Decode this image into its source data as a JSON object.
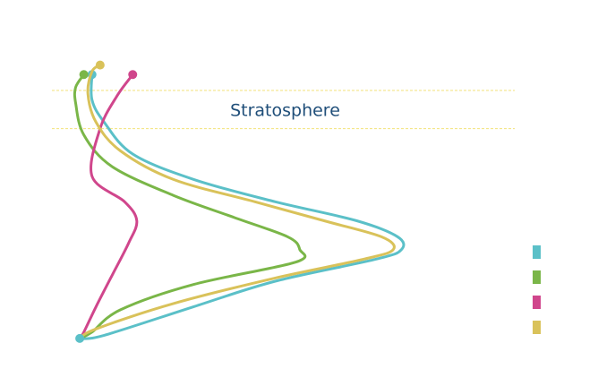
{
  "chart_data": {
    "type": "line",
    "title": "",
    "xlabel": "",
    "ylabel": "",
    "grid": false,
    "legend": "right",
    "xlim": [
      0,
      100
    ],
    "ylim": [
      0,
      100
    ],
    "band": {
      "label": "Stratosphere",
      "y_range": [
        68,
        80
      ],
      "line_color": "#f3e27a",
      "label_color": "#1f4e79"
    },
    "series": [
      {
        "color": "#5bc0c8",
        "points": [
          [
            2,
            2
          ],
          [
            8,
            3
          ],
          [
            30,
            12
          ],
          [
            50,
            20
          ],
          [
            75,
            27
          ],
          [
            81,
            30
          ],
          [
            80,
            34
          ],
          [
            70,
            39
          ],
          [
            50,
            45
          ],
          [
            30,
            52
          ],
          [
            15,
            60
          ],
          [
            8,
            70
          ],
          [
            5,
            77
          ],
          [
            5,
            85
          ]
        ]
      },
      {
        "color": "#7ab648",
        "points": [
          [
            2,
            2
          ],
          [
            5,
            4
          ],
          [
            12,
            11
          ],
          [
            30,
            19
          ],
          [
            55,
            26
          ],
          [
            56,
            30
          ],
          [
            53,
            34
          ],
          [
            40,
            40
          ],
          [
            25,
            47
          ],
          [
            10,
            56
          ],
          [
            3,
            66
          ],
          [
            1,
            76
          ],
          [
            1,
            81
          ],
          [
            3,
            85
          ]
        ]
      },
      {
        "color": "#d0468c",
        "points": [
          [
            2,
            2
          ],
          [
            3,
            4
          ],
          [
            6,
            12
          ],
          [
            10,
            22
          ],
          [
            14,
            32
          ],
          [
            16,
            39
          ],
          [
            13,
            45
          ],
          [
            5,
            53
          ],
          [
            7,
            68
          ],
          [
            11,
            78
          ],
          [
            15,
            85
          ]
        ]
      },
      {
        "color": "#d9c25a",
        "points": [
          [
            2,
            2
          ],
          [
            6,
            5
          ],
          [
            25,
            13
          ],
          [
            50,
            21
          ],
          [
            72,
            27
          ],
          [
            79,
            30
          ],
          [
            76,
            34
          ],
          [
            62,
            39
          ],
          [
            45,
            45
          ],
          [
            25,
            52
          ],
          [
            12,
            61
          ],
          [
            6,
            70
          ],
          [
            4,
            79
          ],
          [
            5,
            86
          ],
          [
            7,
            88
          ]
        ]
      }
    ]
  }
}
